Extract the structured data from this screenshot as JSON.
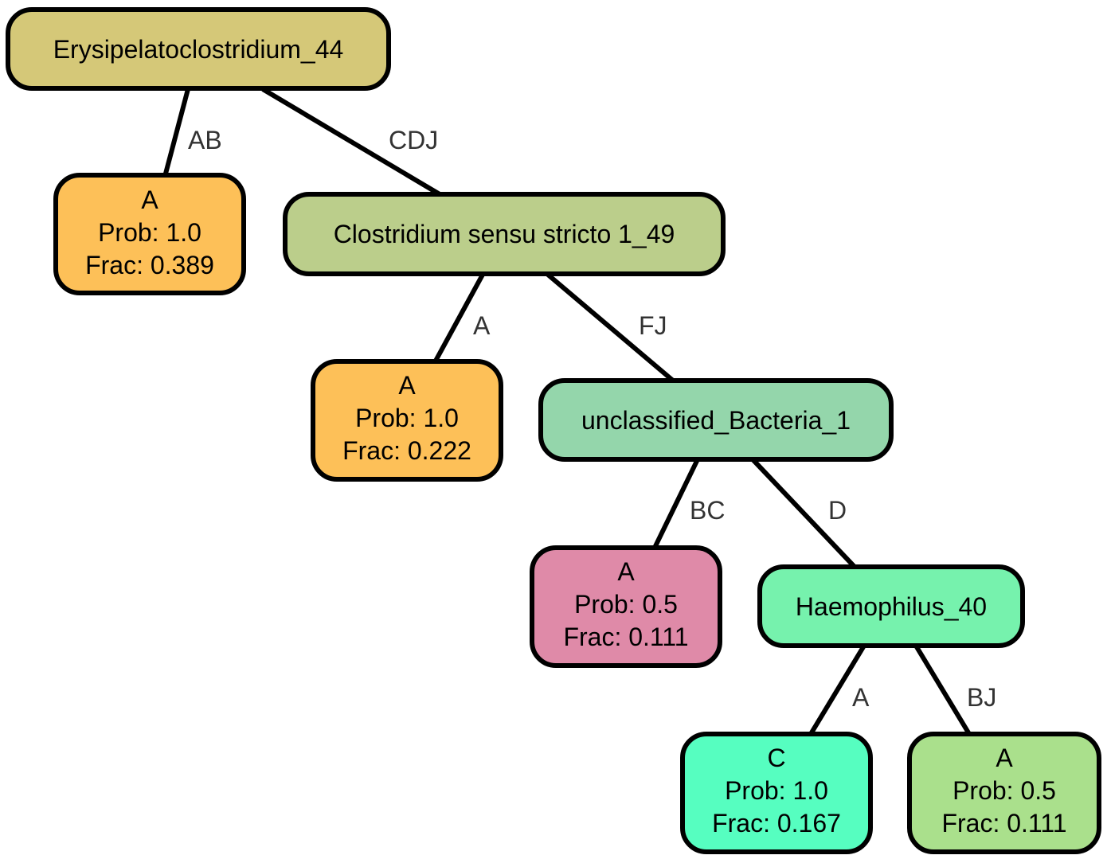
{
  "nodes": {
    "root": {
      "label": "Erysipelatoclostridium_44",
      "color": "#d5c878"
    },
    "leaf1": {
      "lines": [
        "A",
        "Prob: 1.0",
        "Frac: 0.389"
      ],
      "color": "#fdc058"
    },
    "n2": {
      "label": "Clostridium sensu stricto 1_49",
      "color": "#bbce8b"
    },
    "leaf2": {
      "lines": [
        "A",
        "Prob: 1.0",
        "Frac: 0.222"
      ],
      "color": "#fdc058"
    },
    "n3": {
      "label": "unclassified_Bacteria_1",
      "color": "#94d6ab"
    },
    "leaf3": {
      "lines": [
        "A",
        "Prob: 0.5",
        "Frac: 0.111"
      ],
      "color": "#df8aa8"
    },
    "n4": {
      "label": "Haemophilus_40",
      "color": "#76f2ad"
    },
    "leaf4": {
      "lines": [
        "C",
        "Prob: 1.0",
        "Frac: 0.167"
      ],
      "color": "#56fec0"
    },
    "leaf5": {
      "lines": [
        "A",
        "Prob: 0.5",
        "Frac: 0.111"
      ],
      "color": "#aae08c"
    }
  },
  "edges": {
    "e1": "AB",
    "e2": "CDJ",
    "e3": "A",
    "e4": "FJ",
    "e5": "BC",
    "e6": "D",
    "e7": "A",
    "e8": "BJ"
  }
}
